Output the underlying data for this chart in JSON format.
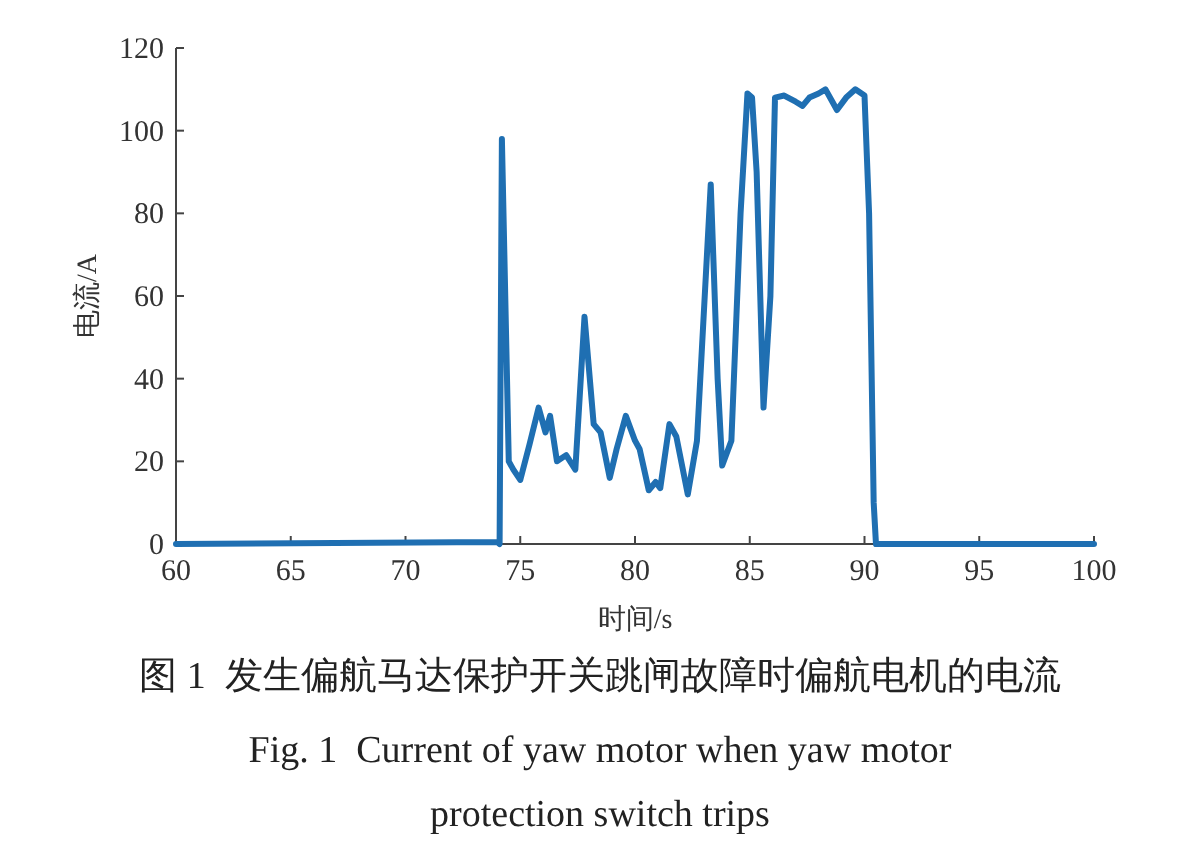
{
  "chart_data": {
    "type": "line",
    "title": "图 1  发生偏航马达保护开关跳闸故障时偏航电机的电流",
    "subtitle": "Fig. 1  Current of yaw motor when yaw motor protection switch trips",
    "xlabel": "时间/s",
    "ylabel": "电流/A",
    "xlim": [
      60,
      100
    ],
    "xticks": [
      60,
      65,
      70,
      75,
      80,
      85,
      90,
      95,
      100
    ],
    "ylim": [
      0,
      120
    ],
    "yticks": [
      0,
      20,
      40,
      60,
      80,
      100,
      120
    ],
    "grid": false,
    "series": [
      {
        "color": "#1f6fb2",
        "x": [
          60,
          74.0,
          74.1,
          74.2,
          74.5,
          74.7,
          75.0,
          75.4,
          75.8,
          76.1,
          76.3,
          76.6,
          77.0,
          77.4,
          77.8,
          78.2,
          78.5,
          78.9,
          79.2,
          79.6,
          80.0,
          80.2,
          80.6,
          80.9,
          81.1,
          81.5,
          81.8,
          82.3,
          82.7,
          83.3,
          83.6,
          83.8,
          84.2,
          84.6,
          84.9,
          85.1,
          85.3,
          85.6,
          85.9,
          86.1,
          86.5,
          87.0,
          87.3,
          87.6,
          88.0,
          88.3,
          88.6,
          88.8,
          89.2,
          89.6,
          90.0,
          90.2,
          90.4,
          90.5,
          100
        ],
        "values": [
          0,
          0.5,
          0,
          98,
          20,
          18,
          15.5,
          24,
          33,
          27,
          31,
          20,
          21.5,
          18,
          55,
          29,
          27,
          16,
          23,
          31,
          25,
          23,
          13,
          15,
          13.5,
          29,
          26,
          12,
          25,
          87,
          40,
          19,
          25,
          80,
          109,
          108,
          90,
          33,
          60,
          108,
          108.5,
          107,
          106,
          108,
          109,
          110,
          107,
          105,
          108,
          110,
          108.5,
          80,
          10,
          0,
          0
        ]
      }
    ]
  }
}
